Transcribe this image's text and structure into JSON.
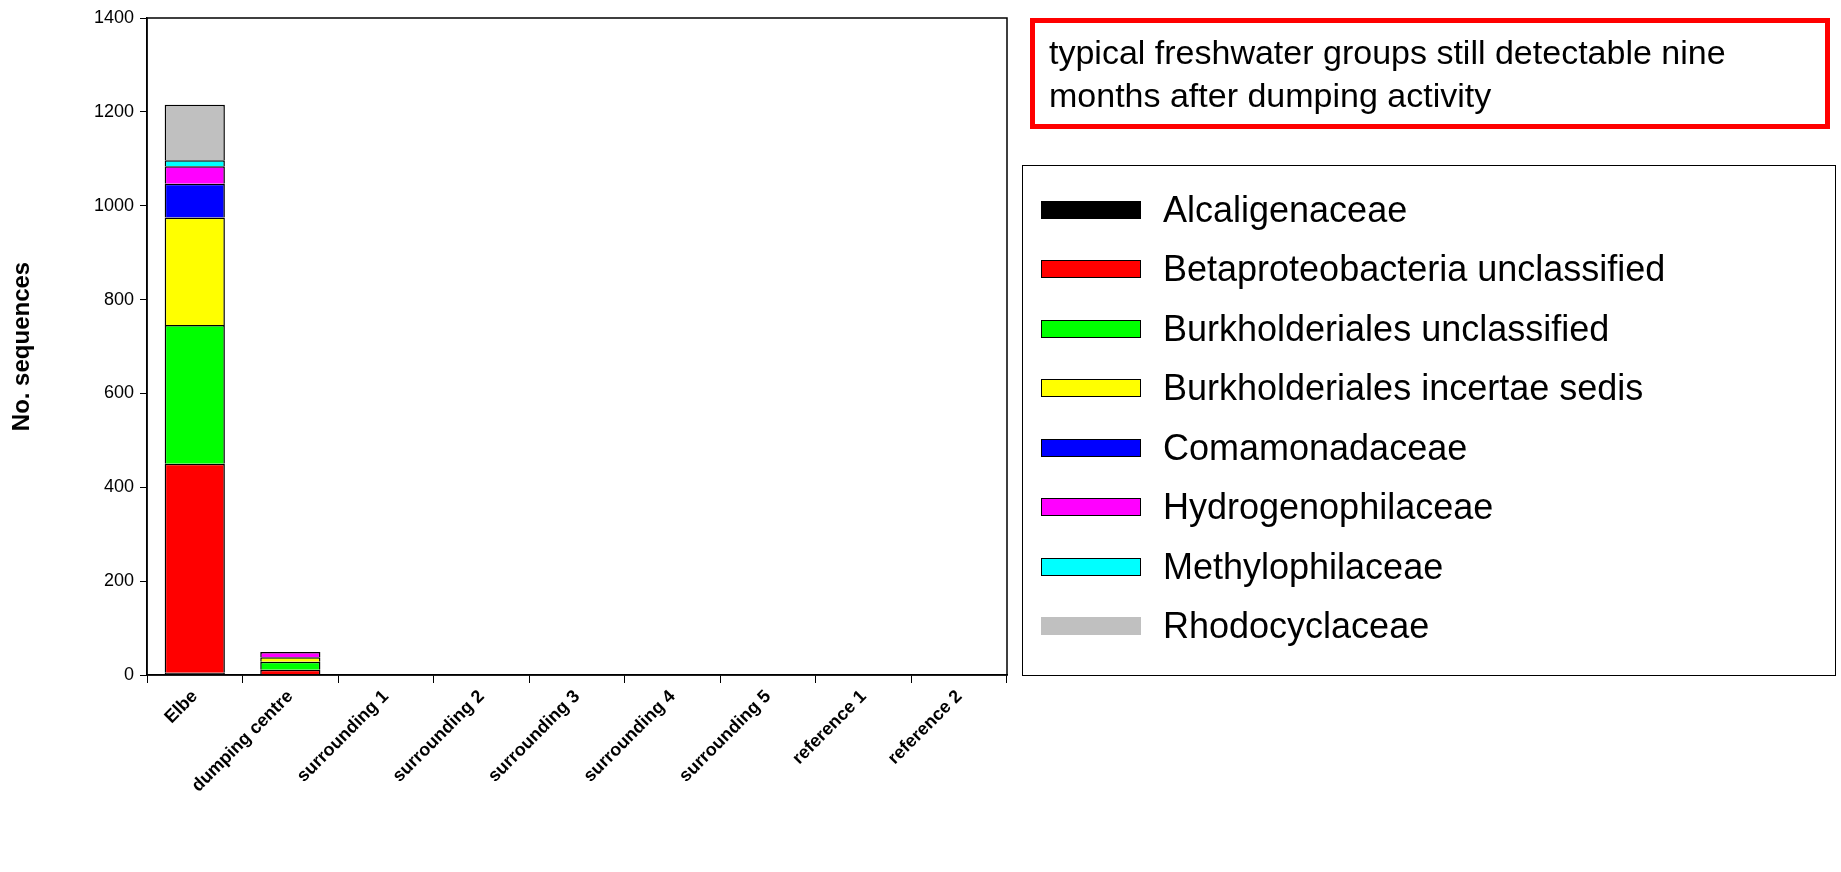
{
  "chart_data": {
    "type": "bar",
    "stacked": true,
    "ylabel": "No. sequences",
    "categories": [
      "Elbe",
      "dumping centre",
      "surrounding 1",
      "surrounding 2",
      "surrounding 3",
      "surrounding 4",
      "surrounding 5",
      "reference 1",
      "reference 2"
    ],
    "ylim": [
      0,
      1400
    ],
    "yticks": [
      0,
      200,
      400,
      600,
      800,
      1000,
      1200,
      1400
    ],
    "legend": "right",
    "annotations": [
      "typical freshwater groups still detectable nine months after  dumping activity"
    ],
    "series": [
      {
        "name": "Alcaligenaceae",
        "color": "#000000",
        "values": [
          5,
          0,
          0,
          0,
          0,
          0,
          0,
          0,
          0
        ]
      },
      {
        "name": "Betaproteobacteria unclassified",
        "color": "#ff0000",
        "values": [
          445,
          11,
          0,
          0,
          0,
          0,
          0,
          0,
          0
        ]
      },
      {
        "name": "Burkholderiales unclassified",
        "color": "#00ff00",
        "values": [
          296,
          17,
          0,
          0,
          0,
          0,
          0,
          0,
          0
        ]
      },
      {
        "name": "Burkholderiales incertae sedis",
        "color": "#ffff00",
        "values": [
          229,
          10,
          0,
          0,
          0,
          0,
          0,
          0,
          0
        ]
      },
      {
        "name": "Comamonadaceae",
        "color": "#0000ff",
        "values": [
          72,
          0,
          0,
          0,
          0,
          0,
          0,
          0,
          0
        ]
      },
      {
        "name": "Hydrogenophilaceae",
        "color": "#ff00ff",
        "values": [
          37,
          11,
          0,
          0,
          0,
          0,
          0,
          0,
          0
        ]
      },
      {
        "name": "Methylophilaceae",
        "color": "#00ffff",
        "values": [
          13,
          0,
          0,
          0,
          0,
          0,
          0,
          0,
          0
        ]
      },
      {
        "name": "Rhodocyclaceae",
        "color": "#c0c0c0",
        "values": [
          118,
          0,
          0,
          0,
          0,
          0,
          0,
          0,
          0
        ]
      }
    ]
  }
}
